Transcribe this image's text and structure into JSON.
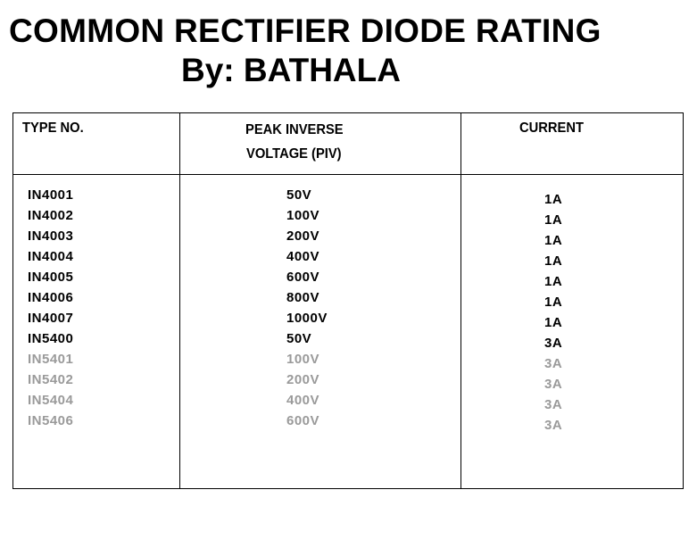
{
  "title": "COMMON RECTIFIER DIODE RATING",
  "byline": "By: BATHALA",
  "table": {
    "headers": {
      "type": "TYPE NO.",
      "piv_line1": "PEAK INVERSE",
      "piv_line2": "VOLTAGE (PIV)",
      "current": "CURRENT"
    },
    "rows": [
      {
        "type": "IN4001",
        "piv": "50V",
        "current": "1A",
        "faded": false
      },
      {
        "type": "IN4002",
        "piv": "100V",
        "current": "1A",
        "faded": false
      },
      {
        "type": "IN4003",
        "piv": "200V",
        "current": "1A",
        "faded": false
      },
      {
        "type": "IN4004",
        "piv": "400V",
        "current": "1A",
        "faded": false
      },
      {
        "type": "IN4005",
        "piv": "600V",
        "current": "1A",
        "faded": false
      },
      {
        "type": "IN4006",
        "piv": "800V",
        "current": "1A",
        "faded": false
      },
      {
        "type": "IN4007",
        "piv": "1000V",
        "current": "1A",
        "faded": false
      },
      {
        "type": "IN5400",
        "piv": "50V",
        "current": "3A",
        "faded": false
      },
      {
        "type": "IN5401",
        "piv": "100V",
        "current": "3A",
        "faded": true
      },
      {
        "type": "IN5402",
        "piv": "200V",
        "current": "3A",
        "faded": true
      },
      {
        "type": "IN5404",
        "piv": "400V",
        "current": "3A",
        "faded": true
      },
      {
        "type": "IN5406",
        "piv": "600V",
        "current": "3A",
        "faded": true
      }
    ]
  },
  "colors": {
    "text": "#000000",
    "faded_text": "#9a9a9a"
  }
}
